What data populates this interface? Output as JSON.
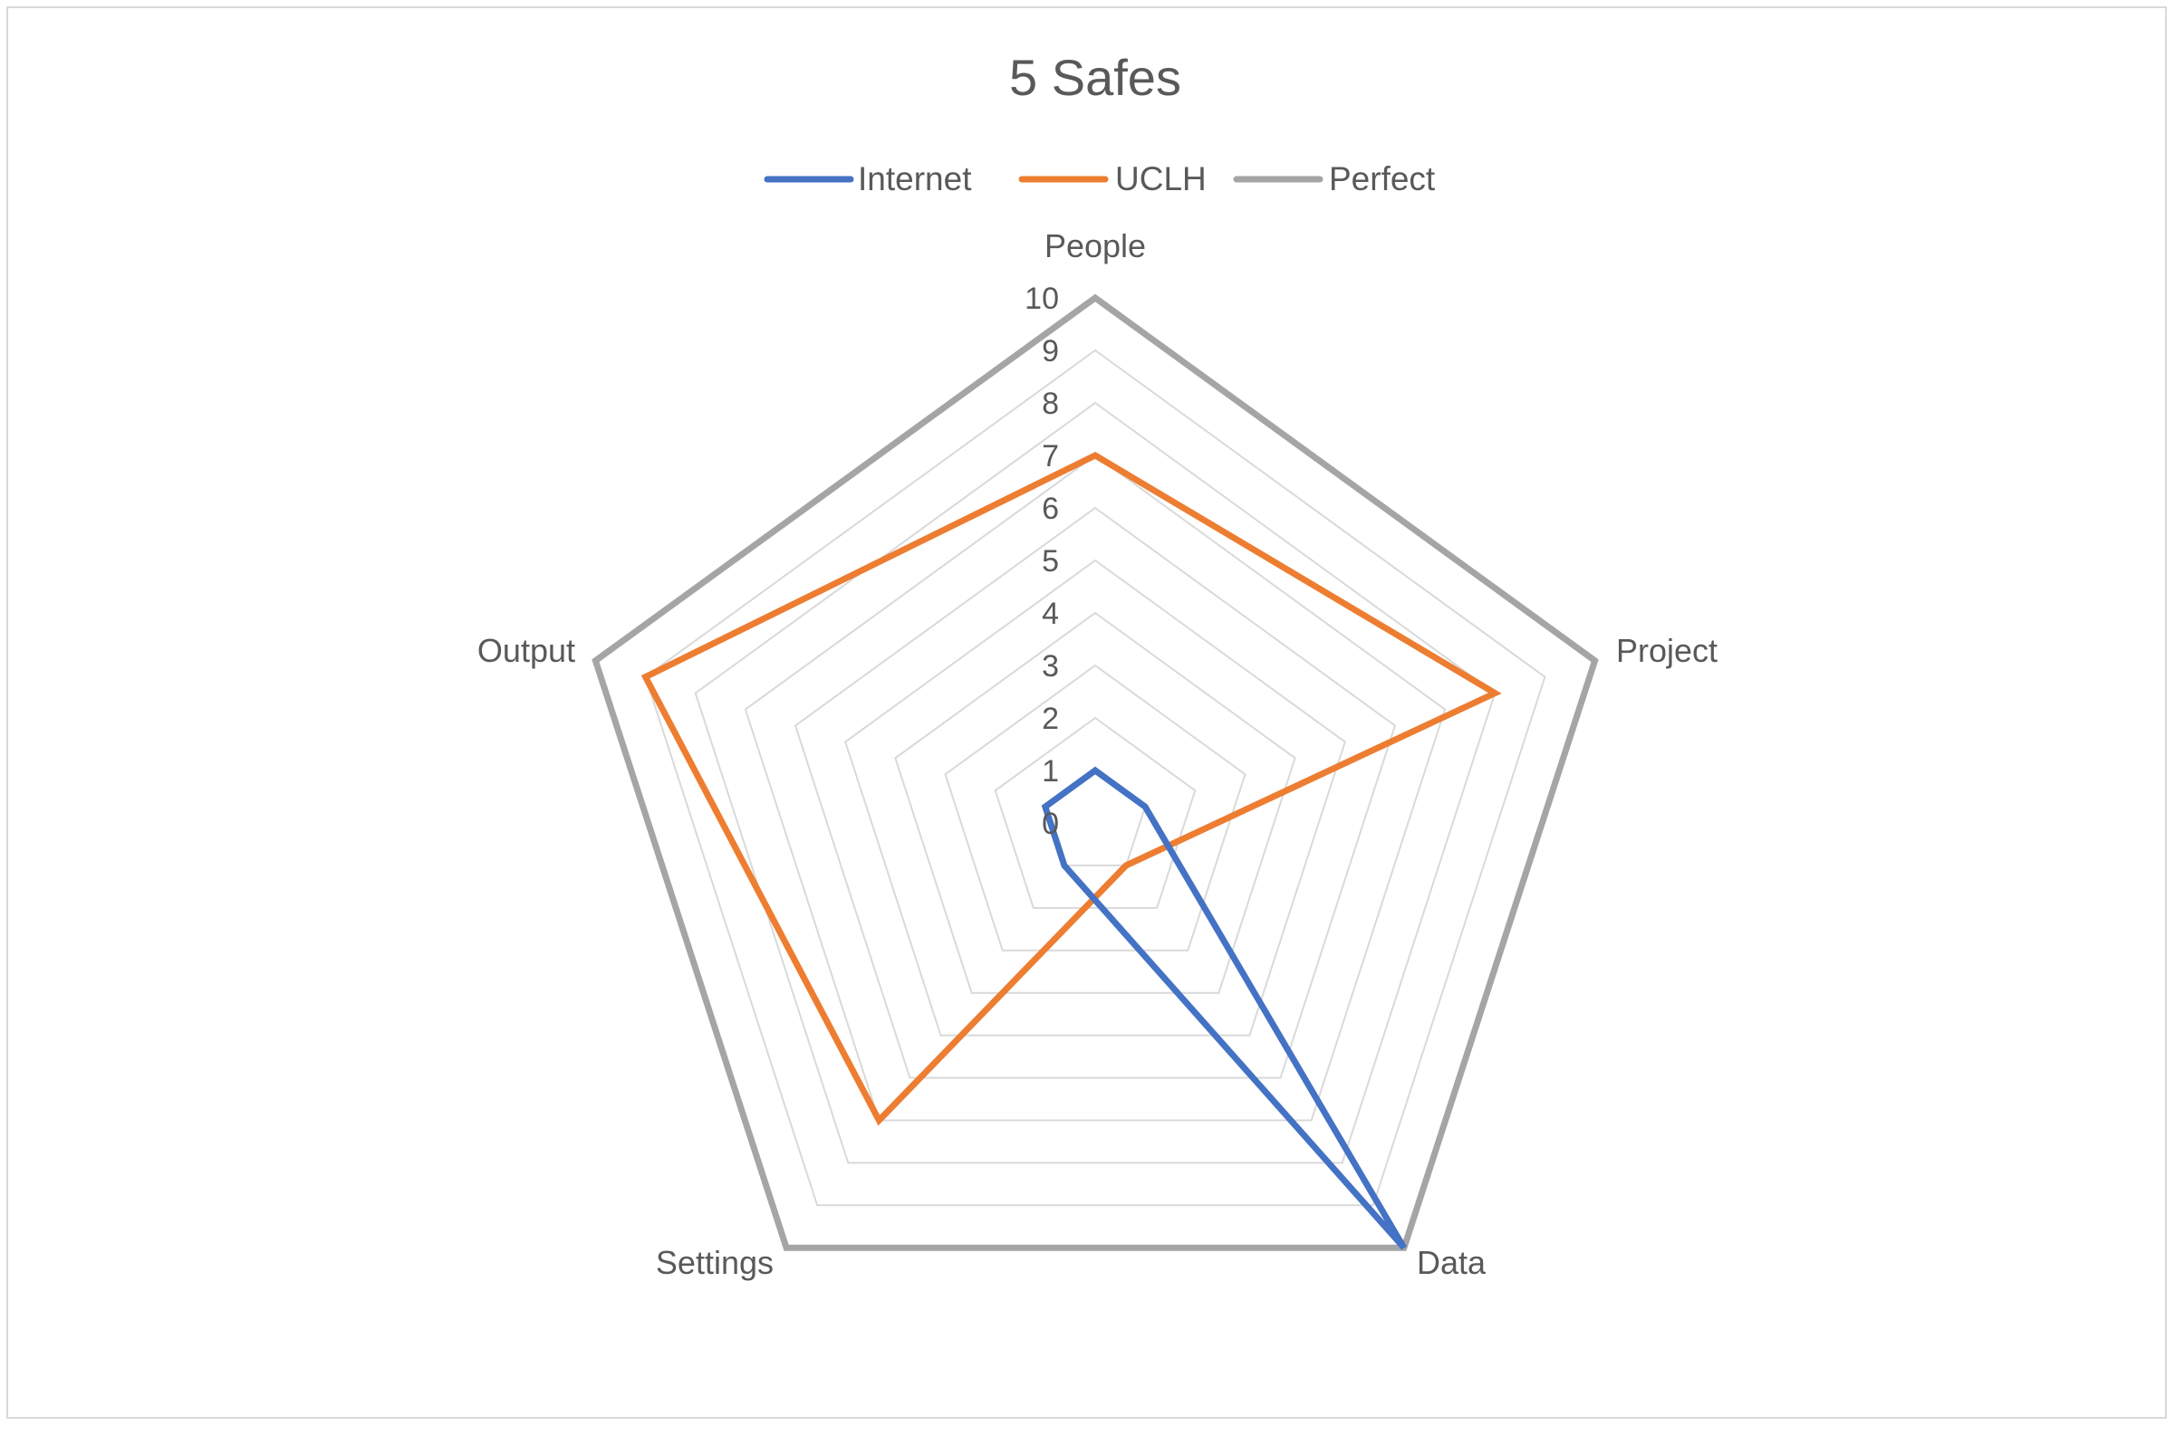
{
  "chart_data": {
    "type": "radar",
    "title": "5 Safes",
    "categories": [
      "People",
      "Project",
      "Data",
      "Settings",
      "Output"
    ],
    "series": [
      {
        "name": "Internet",
        "color": "#4472C4",
        "values": [
          1,
          1,
          10,
          1,
          1
        ]
      },
      {
        "name": "UCLH",
        "color": "#ED7D31",
        "values": [
          7,
          8,
          1,
          7,
          9
        ]
      },
      {
        "name": "Perfect",
        "color": "#A5A5A5",
        "values": [
          10,
          10,
          10,
          10,
          10
        ]
      }
    ],
    "rlim": [
      0,
      10
    ],
    "ticks": [
      "0",
      "1",
      "2",
      "3",
      "4",
      "5",
      "6",
      "7",
      "8",
      "9",
      "10"
    ],
    "grid": true,
    "grid_color": "#D9D9D9",
    "legend_position": "top"
  }
}
